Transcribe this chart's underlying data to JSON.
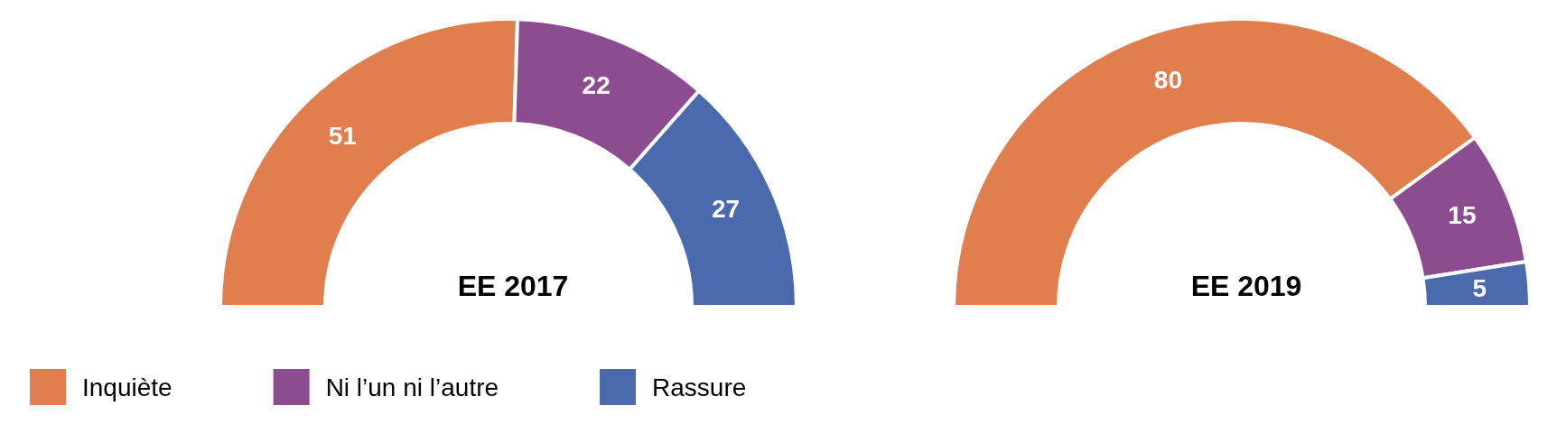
{
  "chart_data": [
    {
      "type": "donut",
      "title": "EE 2017",
      "categories": [
        "Inquiète",
        "Ni l’un ni l’autre",
        "Rassure"
      ],
      "values": [
        51,
        22,
        27
      ],
      "colors": [
        "#e07e4e",
        "#8b4d8f",
        "#4a6aad"
      ],
      "data_labels": true,
      "legend": "bottom left"
    },
    {
      "type": "donut",
      "title": "EE 2019",
      "categories": [
        null,
        null,
        null
      ],
      "values": [
        80,
        15,
        5
      ],
      "colors": [
        "#e07e4e",
        "#8b4d8f",
        "#4a6aad"
      ],
      "data_labels": true
    }
  ]
}
